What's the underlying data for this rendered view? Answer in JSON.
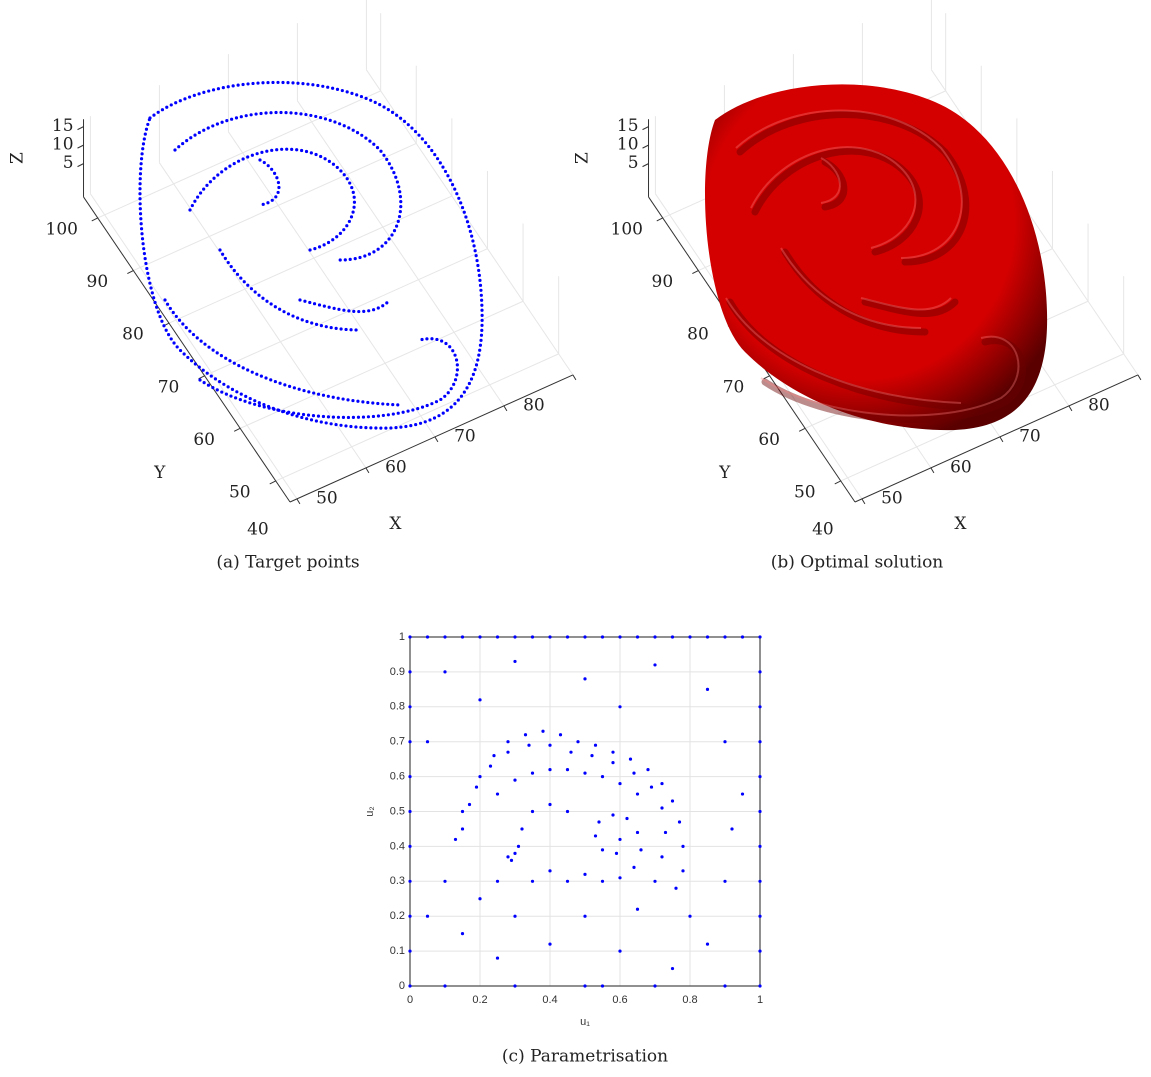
{
  "chart_data": [
    {
      "type": "scatter3d",
      "caption": "(a) Target points",
      "xlabel": "X",
      "ylabel": "Y",
      "zlabel": "Z",
      "xlim": [
        39,
        80
      ],
      "ylim": [
        46,
        104
      ],
      "zlim": [
        -4,
        17
      ],
      "xticks": [
        40,
        50,
        60,
        70,
        80
      ],
      "yticks": [
        50,
        60,
        70,
        80,
        90,
        100
      ],
      "zticks": [
        5,
        10,
        15
      ],
      "color": "#0000ff"
    },
    {
      "type": "surface",
      "caption": "(b) Optimal solution",
      "xlabel": "X",
      "ylabel": "Y",
      "zlabel": "Z",
      "xlim": [
        39,
        80
      ],
      "ylim": [
        46,
        104
      ],
      "zlim": [
        -4,
        17
      ],
      "xticks": [
        40,
        50,
        60,
        70,
        80
      ],
      "yticks": [
        50,
        60,
        70,
        80,
        90,
        100
      ],
      "zticks": [
        5,
        10,
        15
      ],
      "color": "#d40000"
    },
    {
      "type": "scatter",
      "caption": "(c) Parametrisation",
      "xlabel": "u₁",
      "ylabel": "u₂",
      "xlim": [
        0,
        1
      ],
      "ylim": [
        0,
        1
      ],
      "xticks": [
        0,
        0.2,
        0.4,
        0.6,
        0.8,
        1
      ],
      "yticks": [
        0,
        0.1,
        0.2,
        0.3,
        0.4,
        0.5,
        0.6,
        0.7,
        0.8,
        0.9,
        1
      ],
      "grid": true,
      "color": "#0000ff",
      "x": [
        0,
        0.05,
        0.1,
        0.15,
        0.2,
        0.25,
        0.3,
        0.35,
        0.4,
        0.45,
        0.5,
        0.55,
        0.6,
        0.65,
        0.7,
        0.75,
        0.8,
        0.85,
        0.9,
        0.95,
        1,
        1,
        1,
        1,
        1,
        1,
        1,
        1,
        1,
        1,
        1,
        0,
        0,
        0,
        0,
        0,
        0,
        0,
        0,
        0,
        0,
        0.1,
        0.3,
        0.5,
        0.55,
        0.7,
        0.9,
        0.1,
        0.3,
        0.5,
        0.7,
        0.85,
        0.2,
        0.6,
        0.9,
        0.05,
        0.95,
        0.15,
        0.17,
        0.2,
        0.24,
        0.28,
        0.33,
        0.38,
        0.43,
        0.48,
        0.53,
        0.58,
        0.63,
        0.68,
        0.72,
        0.75,
        0.77,
        0.78,
        0.78,
        0.76,
        0.13,
        0.15,
        0.19,
        0.23,
        0.28,
        0.34,
        0.4,
        0.46,
        0.52,
        0.58,
        0.64,
        0.69,
        0.72,
        0.73,
        0.72,
        0.25,
        0.3,
        0.35,
        0.4,
        0.45,
        0.5,
        0.55,
        0.6,
        0.65,
        0.5,
        0.55,
        0.6,
        0.64,
        0.66,
        0.65,
        0.62,
        0.58,
        0.54,
        0.53,
        0.55,
        0.59,
        0.6,
        0.45,
        0.4,
        0.35,
        0.32,
        0.31,
        0.29,
        0.3,
        0.28,
        0.35,
        0.4,
        0.45,
        0.7,
        0.25,
        0.2,
        0.3,
        0.5,
        0.65,
        0.8,
        0.15,
        0.4,
        0.6,
        0.85,
        0.25,
        0.75,
        0.9,
        0.1,
        0.05,
        0.92
      ],
      "values": [
        1,
        1,
        1,
        1,
        1,
        1,
        1,
        1,
        1,
        1,
        1,
        1,
        1,
        1,
        1,
        1,
        1,
        1,
        1,
        1,
        1,
        0.9,
        0.8,
        0.7,
        0.6,
        0.5,
        0.4,
        0.3,
        0.2,
        0.1,
        0,
        0.9,
        0.8,
        0.7,
        0.6,
        0.5,
        0.4,
        0.3,
        0.2,
        0.1,
        0,
        0,
        0,
        0,
        0,
        0,
        0,
        0.9,
        0.93,
        0.88,
        0.92,
        0.85,
        0.82,
        0.8,
        0.7,
        0.7,
        0.55,
        0.45,
        0.52,
        0.6,
        0.66,
        0.7,
        0.72,
        0.73,
        0.72,
        0.7,
        0.69,
        0.67,
        0.65,
        0.62,
        0.58,
        0.53,
        0.47,
        0.4,
        0.33,
        0.28,
        0.42,
        0.5,
        0.57,
        0.63,
        0.67,
        0.69,
        0.69,
        0.67,
        0.66,
        0.64,
        0.61,
        0.57,
        0.51,
        0.44,
        0.37,
        0.55,
        0.59,
        0.61,
        0.62,
        0.62,
        0.61,
        0.6,
        0.58,
        0.55,
        0.32,
        0.3,
        0.31,
        0.34,
        0.39,
        0.44,
        0.48,
        0.49,
        0.47,
        0.43,
        0.39,
        0.38,
        0.42,
        0.5,
        0.52,
        0.5,
        0.45,
        0.4,
        0.36,
        0.38,
        0.37,
        0.3,
        0.33,
        0.3,
        0.3,
        0.3,
        0.25,
        0.2,
        0.2,
        0.22,
        0.2,
        0.15,
        0.12,
        0.1,
        0.12,
        0.08,
        0.05,
        0.3,
        0.3,
        0.2,
        0.45
      ]
    }
  ]
}
